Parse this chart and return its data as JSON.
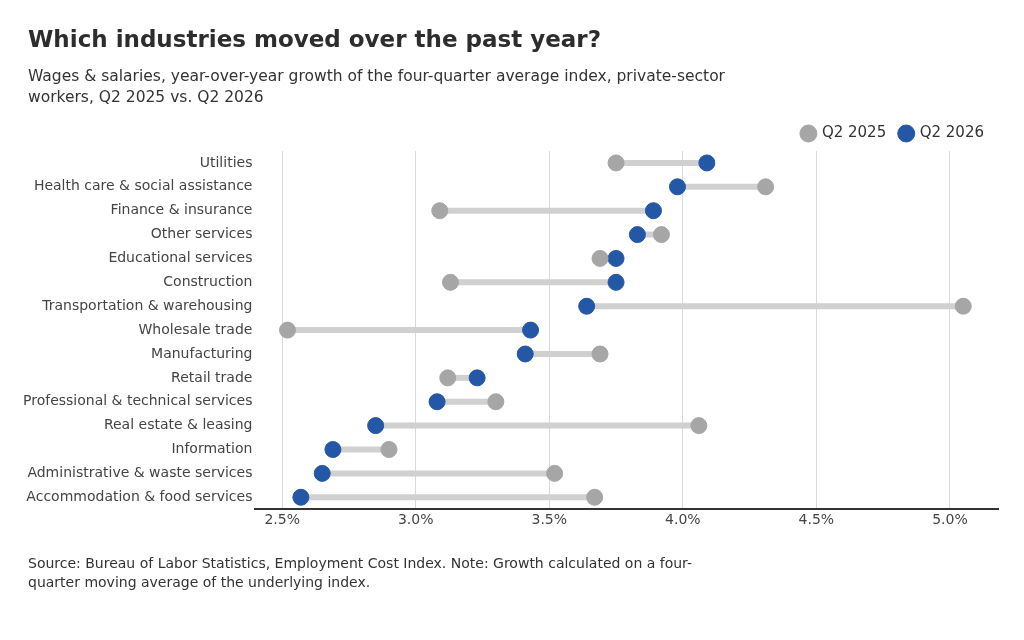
{
  "chart_data": {
    "type": "scatter",
    "orientation": "horizontal",
    "title": "Which industries moved over the past year?",
    "subtitle": "Wages & salaries, year-over-year growth of the four-quarter average index, private-sector workers, Q2 2025 vs. Q2 2026",
    "categories": [
      "Utilities",
      "Health care & social assistance",
      "Finance & insurance",
      "Other services",
      "Educational services",
      "Construction",
      "Transportation & warehousing",
      "Wholesale trade",
      "Manufacturing",
      "Retail trade",
      "Professional & technical services",
      "Real estate & leasing",
      "Information",
      "Administrative & waste services",
      "Accommodation & food services"
    ],
    "series": [
      {
        "name": "Q2 2025",
        "color": "#a6a6a6",
        "values": [
          3.75,
          4.31,
          3.09,
          3.92,
          3.69,
          3.13,
          5.05,
          2.52,
          3.69,
          3.12,
          3.3,
          4.06,
          2.9,
          3.52,
          3.67
        ]
      },
      {
        "name": "Q2 2026",
        "color": "#2557a7",
        "values": [
          4.09,
          3.98,
          3.89,
          3.83,
          3.75,
          3.75,
          3.64,
          3.43,
          3.41,
          3.23,
          3.08,
          2.85,
          2.69,
          2.65,
          2.57
        ]
      }
    ],
    "xlim": [
      2.4,
      5.18
    ],
    "xticks": [
      {
        "value": 2.5,
        "label": "2.5%"
      },
      {
        "value": 3.0,
        "label": "3.0%"
      },
      {
        "value": 3.5,
        "label": "3.5%"
      },
      {
        "value": 4.0,
        "label": "4.0%"
      },
      {
        "value": 4.5,
        "label": "4.5%"
      },
      {
        "value": 5.0,
        "label": "5.0%"
      }
    ],
    "grid": "x",
    "legend": "top right",
    "marker": "circle",
    "annotations": [
      "Source: Bureau of Labor Statistics, Employment Cost Index. Note: Growth calculated on a four-quarter moving average of the underlying index."
    ]
  }
}
